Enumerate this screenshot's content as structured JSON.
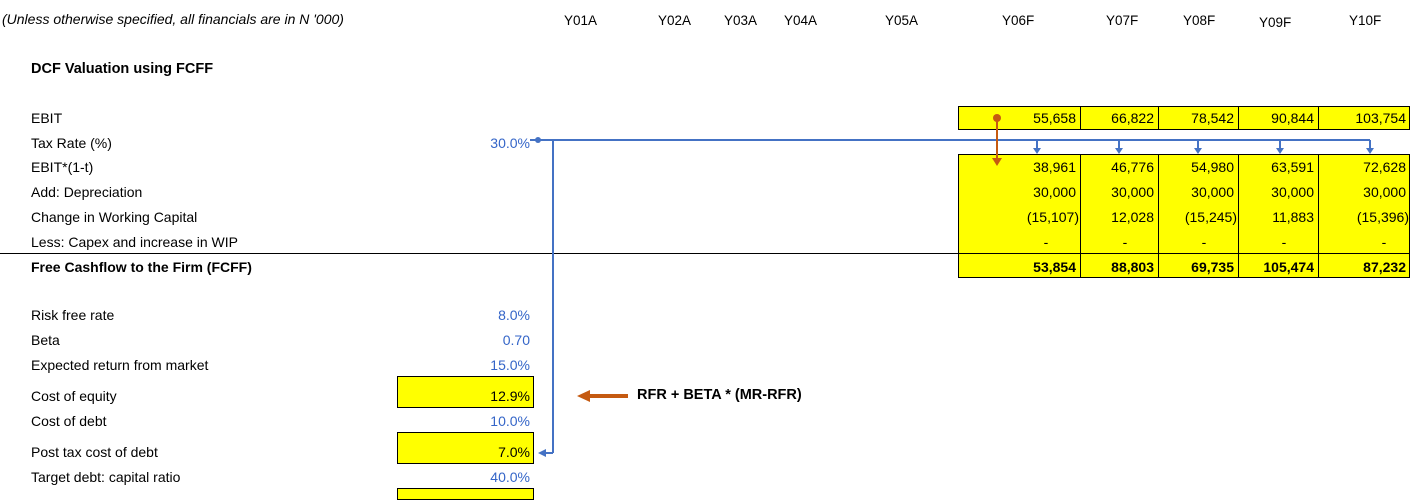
{
  "note": "(Unless otherwise specified, all financials are in N '000)",
  "years": [
    "Y01A",
    "Y02A",
    "Y03A",
    "Y04A",
    "Y05A",
    "Y06F",
    "Y07F",
    "Y08F",
    "Y09F",
    "Y10F"
  ],
  "section_title": "DCF Valuation using FCFF",
  "rows": {
    "ebit": {
      "label": "EBIT",
      "values": [
        "55,658",
        "66,822",
        "78,542",
        "90,844",
        "103,754"
      ]
    },
    "tax_rate": {
      "label": "Tax Rate (%)",
      "value": "30.0%"
    },
    "ebit_1t": {
      "label": "EBIT*(1-t)",
      "values": [
        "38,961",
        "46,776",
        "54,980",
        "63,591",
        "72,628"
      ]
    },
    "depreciation": {
      "label": "Add: Depreciation",
      "values": [
        "30,000",
        "30,000",
        "30,000",
        "30,000",
        "30,000"
      ]
    },
    "working_capital": {
      "label": "Change in Working Capital",
      "values": [
        "(15,107)",
        "12,028",
        "(15,245)",
        "11,883",
        "(15,396)"
      ]
    },
    "capex": {
      "label": "Less: Capex and increase in WIP",
      "values": [
        "-",
        "-",
        "-",
        "-",
        "-"
      ]
    },
    "fcff": {
      "label": "Free Cashflow to the Firm (FCFF)",
      "values": [
        "53,854",
        "88,803",
        "69,735",
        "105,474",
        "87,232"
      ]
    }
  },
  "assumptions": [
    {
      "label": "Risk free rate",
      "value": "8.0%",
      "highlight": false
    },
    {
      "label": "Beta",
      "value": "0.70",
      "highlight": false
    },
    {
      "label": "Expected return from market",
      "value": "15.0%",
      "highlight": false
    },
    {
      "label": "Cost of equity",
      "value": "12.9%",
      "highlight": true
    },
    {
      "label": "Cost of debt",
      "value": "10.0%",
      "highlight": false
    },
    {
      "label": "Post tax cost of debt",
      "value": "7.0%",
      "highlight": true
    },
    {
      "label": "Target debt: capital ratio",
      "value": "40.0%",
      "highlight": false
    }
  ],
  "formula": "RFR + BETA * (MR-RFR)",
  "colors": {
    "highlight": "#ffff00",
    "input_blue": "#3465c8",
    "trace_blue": "#4472c4",
    "trace_orange": "#c55a11"
  }
}
